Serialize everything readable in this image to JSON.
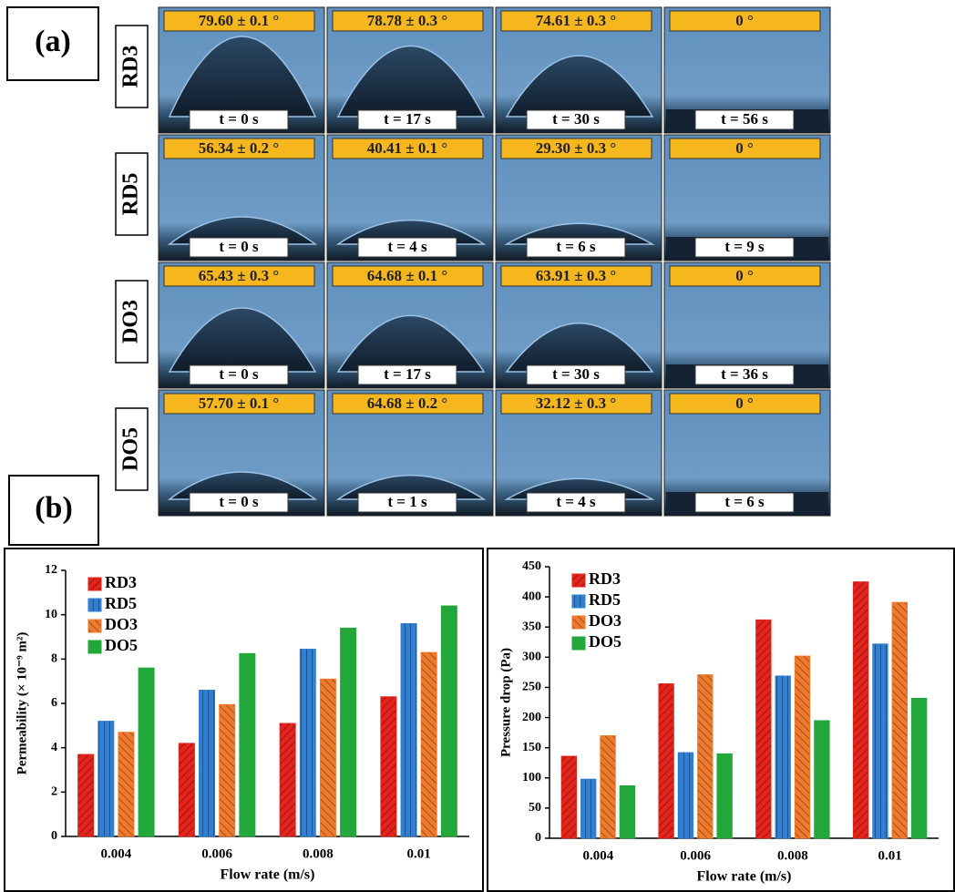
{
  "panel_a": {
    "label": "(a)",
    "rows": [
      {
        "name": "RD3",
        "cells": [
          {
            "angle": "79.60 ± 0.1 °",
            "time": "t = 0 s"
          },
          {
            "angle": "78.78 ± 0.3 °",
            "time": "t = 17 s"
          },
          {
            "angle": "74.61 ± 0.3 °",
            "time": "t = 30 s"
          },
          {
            "angle": "0 °",
            "time": "t = 56 s"
          }
        ]
      },
      {
        "name": "RD5",
        "cells": [
          {
            "angle": "56.34 ± 0.2 °",
            "time": "t = 0 s"
          },
          {
            "angle": "40.41 ± 0.1 °",
            "time": "t = 4 s"
          },
          {
            "angle": "29.30 ± 0.3 °",
            "time": "t = 6 s"
          },
          {
            "angle": "0 °",
            "time": "t = 9 s"
          }
        ]
      },
      {
        "name": "DO3",
        "cells": [
          {
            "angle": "65.43 ± 0.3 °",
            "time": "t = 0 s"
          },
          {
            "angle": "64.68 ± 0.1 °",
            "time": "t = 17 s"
          },
          {
            "angle": "63.91 ± 0.3 °",
            "time": "t = 30 s"
          },
          {
            "angle": "0 °",
            "time": "t = 36 s"
          }
        ]
      },
      {
        "name": "DO5",
        "cells": [
          {
            "angle": "57.70 ± 0.1 °",
            "time": "t = 0 s"
          },
          {
            "angle": "64.68 ± 0.2 °",
            "time": "t = 1 s"
          },
          {
            "angle": "32.12 ± 0.3 °",
            "time": "t = 4 s"
          },
          {
            "angle": "0 °",
            "time": "t = 6 s"
          }
        ]
      }
    ]
  },
  "panel_b_label": "(b)",
  "chart_data": [
    {
      "type": "bar",
      "x_label": "Flow rate (m/s)",
      "y_label": "Permeability (× 10⁻⁹ m²)",
      "categories": [
        "0.004",
        "0.006",
        "0.008",
        "0.01"
      ],
      "series": [
        {
          "name": "RD3",
          "color": "#e3231c",
          "values": [
            3.7,
            4.2,
            5.1,
            6.3
          ]
        },
        {
          "name": "RD5",
          "color": "#2e7fd6",
          "values": [
            5.2,
            6.6,
            8.45,
            9.6
          ]
        },
        {
          "name": "DO3",
          "color": "#f07a2b",
          "values": [
            4.7,
            5.95,
            7.1,
            8.3
          ]
        },
        {
          "name": "DO5",
          "color": "#22a83a",
          "values": [
            7.6,
            8.25,
            9.4,
            10.4
          ]
        }
      ],
      "ylim": [
        0,
        12
      ],
      "yticks": [
        0,
        2,
        4,
        6,
        8,
        10,
        12
      ],
      "legend": "upper-left"
    },
    {
      "type": "bar",
      "x_label": "Flow rate (m/s)",
      "y_label": "Pressure drop (Pa)",
      "categories": [
        "0.004",
        "0.006",
        "0.008",
        "0.01"
      ],
      "series": [
        {
          "name": "RD3",
          "color": "#e3231c",
          "values": [
            136,
            256,
            362,
            425
          ]
        },
        {
          "name": "RD5",
          "color": "#2e7fd6",
          "values": [
            98,
            142,
            269,
            322
          ]
        },
        {
          "name": "DO3",
          "color": "#f07a2b",
          "values": [
            170,
            271,
            302,
            391
          ]
        },
        {
          "name": "DO5",
          "color": "#22a83a",
          "values": [
            87,
            140,
            195,
            232
          ]
        }
      ],
      "ylim": [
        0,
        450
      ],
      "yticks": [
        0,
        50,
        100,
        150,
        200,
        250,
        300,
        350,
        400,
        450
      ],
      "legend": "upper-left"
    }
  ]
}
